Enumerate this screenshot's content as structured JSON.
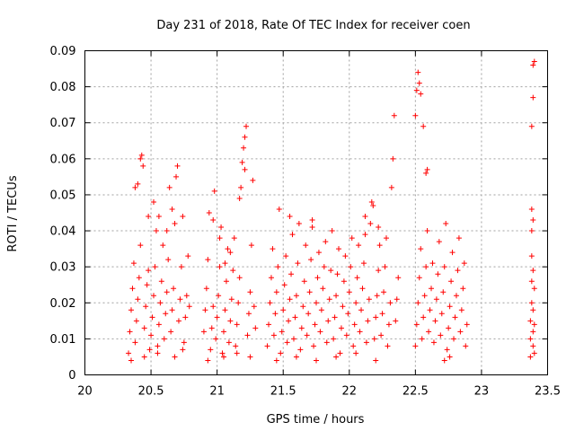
{
  "chart_data": {
    "type": "scatter",
    "title": "Day 231 of 2018, Rate Of TEC Index for receiver coen",
    "xlabel": "GPS time / hours",
    "ylabel": "ROTI / TECUs",
    "xlim": [
      20,
      23.5
    ],
    "ylim": [
      0,
      0.09
    ],
    "xticks": [
      20,
      20.5,
      21,
      21.5,
      22,
      22.5,
      23,
      23.5
    ],
    "xtick_labels": [
      "20",
      "20.5",
      "21",
      "21.5",
      "22",
      "22.5",
      "23",
      "23.5"
    ],
    "yticks": [
      0,
      0.01,
      0.02,
      0.03,
      0.04,
      0.05,
      0.06,
      0.07,
      0.08,
      0.09
    ],
    "ytick_labels": [
      "0",
      "0.01",
      "0.02",
      "0.03",
      "0.04",
      "0.05",
      "0.06",
      "0.07",
      "0.08",
      "0.09"
    ],
    "grid": true,
    "marker": "+",
    "color": "#ff0000",
    "series": [
      {
        "name": "ROTI",
        "points": [
          [
            20.33,
            0.006
          ],
          [
            20.34,
            0.012
          ],
          [
            20.35,
            0.018
          ],
          [
            20.36,
            0.024
          ],
          [
            20.37,
            0.031
          ],
          [
            20.38,
            0.009
          ],
          [
            20.39,
            0.015
          ],
          [
            20.4,
            0.021
          ],
          [
            20.41,
            0.027
          ],
          [
            20.42,
            0.036
          ],
          [
            20.38,
            0.052
          ],
          [
            20.4,
            0.053
          ],
          [
            20.42,
            0.06
          ],
          [
            20.43,
            0.061
          ],
          [
            20.44,
            0.058
          ],
          [
            20.45,
            0.013
          ],
          [
            20.46,
            0.019
          ],
          [
            20.47,
            0.025
          ],
          [
            20.48,
            0.044
          ],
          [
            20.49,
            0.007
          ],
          [
            20.5,
            0.011
          ],
          [
            20.51,
            0.016
          ],
          [
            20.52,
            0.022
          ],
          [
            20.53,
            0.03
          ],
          [
            20.54,
            0.04
          ],
          [
            20.55,
            0.008
          ],
          [
            20.56,
            0.014
          ],
          [
            20.57,
            0.02
          ],
          [
            20.58,
            0.026
          ],
          [
            20.59,
            0.036
          ],
          [
            20.6,
            0.01
          ],
          [
            20.61,
            0.017
          ],
          [
            20.62,
            0.023
          ],
          [
            20.63,
            0.032
          ],
          [
            20.64,
            0.052
          ],
          [
            20.65,
            0.012
          ],
          [
            20.66,
            0.018
          ],
          [
            20.67,
            0.024
          ],
          [
            20.68,
            0.042
          ],
          [
            20.69,
            0.055
          ],
          [
            20.7,
            0.058
          ],
          [
            20.71,
            0.015
          ],
          [
            20.72,
            0.021
          ],
          [
            20.73,
            0.03
          ],
          [
            20.74,
            0.044
          ],
          [
            20.75,
            0.009
          ],
          [
            20.76,
            0.016
          ],
          [
            20.77,
            0.022
          ],
          [
            20.78,
            0.033
          ],
          [
            20.79,
            0.019
          ],
          [
            20.52,
            0.048
          ],
          [
            20.56,
            0.044
          ],
          [
            20.62,
            0.04
          ],
          [
            20.66,
            0.046
          ],
          [
            20.35,
            0.004
          ],
          [
            20.45,
            0.005
          ],
          [
            20.55,
            0.006
          ],
          [
            20.68,
            0.005
          ],
          [
            20.74,
            0.007
          ],
          [
            20.48,
            0.029
          ],
          [
            20.9,
            0.012
          ],
          [
            20.91,
            0.018
          ],
          [
            20.92,
            0.024
          ],
          [
            20.93,
            0.032
          ],
          [
            20.94,
            0.045
          ],
          [
            20.95,
            0.007
          ],
          [
            20.96,
            0.013
          ],
          [
            20.97,
            0.019
          ],
          [
            20.98,
            0.051
          ],
          [
            20.99,
            0.01
          ],
          [
            21.0,
            0.016
          ],
          [
            21.01,
            0.022
          ],
          [
            21.02,
            0.03
          ],
          [
            21.03,
            0.041
          ],
          [
            21.04,
            0.006
          ],
          [
            21.05,
            0.012
          ],
          [
            21.06,
            0.018
          ],
          [
            21.07,
            0.026
          ],
          [
            21.08,
            0.035
          ],
          [
            21.09,
            0.009
          ],
          [
            21.1,
            0.015
          ],
          [
            21.11,
            0.021
          ],
          [
            21.12,
            0.029
          ],
          [
            21.13,
            0.038
          ],
          [
            21.14,
            0.008
          ],
          [
            21.15,
            0.014
          ],
          [
            21.16,
            0.02
          ],
          [
            21.17,
            0.027
          ],
          [
            21.18,
            0.052
          ],
          [
            21.19,
            0.059
          ],
          [
            21.2,
            0.063
          ],
          [
            21.21,
            0.066
          ],
          [
            21.22,
            0.069
          ],
          [
            21.23,
            0.011
          ],
          [
            21.24,
            0.017
          ],
          [
            21.25,
            0.023
          ],
          [
            21.26,
            0.036
          ],
          [
            21.27,
            0.054
          ],
          [
            21.28,
            0.019
          ],
          [
            21.29,
            0.013
          ],
          [
            20.93,
            0.004
          ],
          [
            21.05,
            0.005
          ],
          [
            21.15,
            0.006
          ],
          [
            21.25,
            0.005
          ],
          [
            21.02,
            0.038
          ],
          [
            21.1,
            0.034
          ],
          [
            21.17,
            0.049
          ],
          [
            21.21,
            0.057
          ],
          [
            20.97,
            0.043
          ],
          [
            21.06,
            0.031
          ],
          [
            21.38,
            0.008
          ],
          [
            21.39,
            0.014
          ],
          [
            21.4,
            0.02
          ],
          [
            21.41,
            0.027
          ],
          [
            21.42,
            0.035
          ],
          [
            21.43,
            0.011
          ],
          [
            21.44,
            0.017
          ],
          [
            21.45,
            0.023
          ],
          [
            21.46,
            0.03
          ],
          [
            21.47,
            0.046
          ],
          [
            21.48,
            0.006
          ],
          [
            21.49,
            0.012
          ],
          [
            21.5,
            0.018
          ],
          [
            21.51,
            0.025
          ],
          [
            21.52,
            0.033
          ],
          [
            21.53,
            0.009
          ],
          [
            21.54,
            0.015
          ],
          [
            21.55,
            0.021
          ],
          [
            21.56,
            0.028
          ],
          [
            21.57,
            0.039
          ],
          [
            21.58,
            0.01
          ],
          [
            21.59,
            0.016
          ],
          [
            21.6,
            0.022
          ],
          [
            21.61,
            0.031
          ],
          [
            21.62,
            0.042
          ],
          [
            21.63,
            0.007
          ],
          [
            21.64,
            0.013
          ],
          [
            21.65,
            0.019
          ],
          [
            21.66,
            0.026
          ],
          [
            21.67,
            0.036
          ],
          [
            21.68,
            0.011
          ],
          [
            21.69,
            0.017
          ],
          [
            21.7,
            0.023
          ],
          [
            21.71,
            0.032
          ],
          [
            21.72,
            0.043
          ],
          [
            21.73,
            0.008
          ],
          [
            21.74,
            0.014
          ],
          [
            21.75,
            0.02
          ],
          [
            21.76,
            0.027
          ],
          [
            21.77,
            0.034
          ],
          [
            21.78,
            0.012
          ],
          [
            21.79,
            0.018
          ],
          [
            21.8,
            0.024
          ],
          [
            21.81,
            0.03
          ],
          [
            21.82,
            0.037
          ],
          [
            21.83,
            0.009
          ],
          [
            21.84,
            0.015
          ],
          [
            21.85,
            0.021
          ],
          [
            21.86,
            0.029
          ],
          [
            21.87,
            0.04
          ],
          [
            21.88,
            0.01
          ],
          [
            21.89,
            0.016
          ],
          [
            21.9,
            0.022
          ],
          [
            21.91,
            0.028
          ],
          [
            21.92,
            0.035
          ],
          [
            21.93,
            0.006
          ],
          [
            21.94,
            0.013
          ],
          [
            21.95,
            0.019
          ],
          [
            21.96,
            0.026
          ],
          [
            21.97,
            0.033
          ],
          [
            21.98,
            0.011
          ],
          [
            21.99,
            0.017
          ],
          [
            22.0,
            0.023
          ],
          [
            22.01,
            0.03
          ],
          [
            22.02,
            0.038
          ],
          [
            22.03,
            0.008
          ],
          [
            22.04,
            0.014
          ],
          [
            22.05,
            0.02
          ],
          [
            22.06,
            0.027
          ],
          [
            22.07,
            0.036
          ],
          [
            22.08,
            0.012
          ],
          [
            22.09,
            0.018
          ],
          [
            22.1,
            0.024
          ],
          [
            22.11,
            0.031
          ],
          [
            22.12,
            0.039
          ],
          [
            22.13,
            0.009
          ],
          [
            22.14,
            0.015
          ],
          [
            22.15,
            0.021
          ],
          [
            22.16,
            0.042
          ],
          [
            22.17,
            0.048
          ],
          [
            22.18,
            0.047
          ],
          [
            22.19,
            0.01
          ],
          [
            22.2,
            0.016
          ],
          [
            22.21,
            0.022
          ],
          [
            22.22,
            0.029
          ],
          [
            22.23,
            0.036
          ],
          [
            22.24,
            0.011
          ],
          [
            22.25,
            0.017
          ],
          [
            22.26,
            0.023
          ],
          [
            22.27,
            0.03
          ],
          [
            22.28,
            0.038
          ],
          [
            22.29,
            0.008
          ],
          [
            22.3,
            0.014
          ],
          [
            22.31,
            0.02
          ],
          [
            22.32,
            0.052
          ],
          [
            22.33,
            0.06
          ],
          [
            22.34,
            0.072
          ],
          [
            22.35,
            0.015
          ],
          [
            22.36,
            0.021
          ],
          [
            22.37,
            0.027
          ],
          [
            21.45,
            0.004
          ],
          [
            21.6,
            0.005
          ],
          [
            21.75,
            0.004
          ],
          [
            21.9,
            0.005
          ],
          [
            22.05,
            0.006
          ],
          [
            22.2,
            0.004
          ],
          [
            21.55,
            0.044
          ],
          [
            21.72,
            0.041
          ],
          [
            22.12,
            0.044
          ],
          [
            22.22,
            0.041
          ],
          [
            22.5,
            0.008
          ],
          [
            22.51,
            0.014
          ],
          [
            22.52,
            0.02
          ],
          [
            22.53,
            0.027
          ],
          [
            22.54,
            0.035
          ],
          [
            22.55,
            0.01
          ],
          [
            22.56,
            0.016
          ],
          [
            22.57,
            0.022
          ],
          [
            22.58,
            0.03
          ],
          [
            22.59,
            0.04
          ],
          [
            22.5,
            0.072
          ],
          [
            22.51,
            0.079
          ],
          [
            22.52,
            0.084
          ],
          [
            22.53,
            0.081
          ],
          [
            22.54,
            0.078
          ],
          [
            22.56,
            0.069
          ],
          [
            22.58,
            0.056
          ],
          [
            22.59,
            0.057
          ],
          [
            22.6,
            0.012
          ],
          [
            22.61,
            0.018
          ],
          [
            22.62,
            0.024
          ],
          [
            22.63,
            0.031
          ],
          [
            22.64,
            0.009
          ],
          [
            22.65,
            0.015
          ],
          [
            22.66,
            0.021
          ],
          [
            22.67,
            0.028
          ],
          [
            22.68,
            0.037
          ],
          [
            22.69,
            0.011
          ],
          [
            22.7,
            0.017
          ],
          [
            22.71,
            0.023
          ],
          [
            22.72,
            0.03
          ],
          [
            22.73,
            0.042
          ],
          [
            22.74,
            0.007
          ],
          [
            22.75,
            0.013
          ],
          [
            22.76,
            0.019
          ],
          [
            22.77,
            0.026
          ],
          [
            22.78,
            0.034
          ],
          [
            22.79,
            0.01
          ],
          [
            22.8,
            0.016
          ],
          [
            22.81,
            0.022
          ],
          [
            22.82,
            0.029
          ],
          [
            22.83,
            0.038
          ],
          [
            22.84,
            0.012
          ],
          [
            22.85,
            0.018
          ],
          [
            22.86,
            0.024
          ],
          [
            22.87,
            0.031
          ],
          [
            22.88,
            0.008
          ],
          [
            22.89,
            0.014
          ],
          [
            22.72,
            0.004
          ],
          [
            22.76,
            0.005
          ],
          [
            23.37,
            0.005
          ],
          [
            23.37,
            0.01
          ],
          [
            23.37,
            0.015
          ],
          [
            23.38,
            0.02
          ],
          [
            23.38,
            0.026
          ],
          [
            23.38,
            0.033
          ],
          [
            23.38,
            0.04
          ],
          [
            23.38,
            0.046
          ],
          [
            23.39,
            0.043
          ],
          [
            23.39,
            0.012
          ],
          [
            23.39,
            0.008
          ],
          [
            23.39,
            0.018
          ],
          [
            23.4,
            0.024
          ],
          [
            23.4,
            0.014
          ],
          [
            23.38,
            0.069
          ],
          [
            23.39,
            0.077
          ],
          [
            23.39,
            0.086
          ],
          [
            23.4,
            0.087
          ],
          [
            23.4,
            0.006
          ],
          [
            23.39,
            0.029
          ]
        ]
      }
    ]
  }
}
